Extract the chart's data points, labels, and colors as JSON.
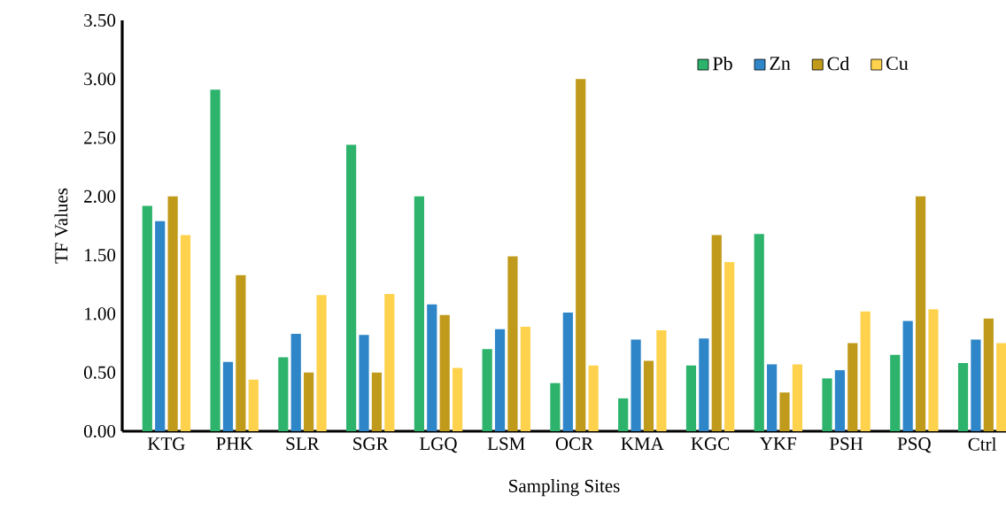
{
  "chart_data": {
    "type": "bar",
    "xlabel": "Sampling Sites",
    "ylabel": "TF Values",
    "categories": [
      "KTG",
      "PHK",
      "SLR",
      "SGR",
      "LGQ",
      "LSM",
      "OCR",
      "KMA",
      "KGC",
      "YKF",
      "PSH",
      "PSQ",
      "Ctrl"
    ],
    "series": [
      {
        "name": "Pb",
        "color": "#2db36b",
        "values": [
          1.92,
          2.91,
          0.63,
          2.44,
          2.0,
          0.7,
          0.41,
          0.28,
          0.56,
          1.68,
          0.45,
          0.65,
          0.58
        ]
      },
      {
        "name": "Zn",
        "color": "#2e86c8",
        "values": [
          1.79,
          0.59,
          0.83,
          0.82,
          1.08,
          0.87,
          1.01,
          0.78,
          0.79,
          0.57,
          0.52,
          0.94,
          0.78
        ]
      },
      {
        "name": "Cd",
        "color": "#c09a1a",
        "values": [
          2.0,
          1.33,
          0.5,
          0.5,
          0.99,
          1.49,
          3.0,
          0.6,
          1.67,
          0.33,
          0.75,
          2.0,
          0.96
        ]
      },
      {
        "name": "Cu",
        "color": "#ffd24d",
        "values": [
          1.67,
          0.44,
          1.16,
          1.17,
          0.54,
          0.89,
          0.56,
          0.86,
          1.44,
          0.57,
          1.02,
          1.04,
          0.75
        ]
      }
    ],
    "ylim": [
      0,
      3.5
    ],
    "yticks": [
      {
        "value": 0,
        "label": "0.00"
      },
      {
        "value": 0.5,
        "label": "0.50"
      },
      {
        "value": 1,
        "label": "1.00"
      },
      {
        "value": 1.5,
        "label": "1.50"
      },
      {
        "value": 2,
        "label": "2.00"
      },
      {
        "value": 2.5,
        "label": "2.50"
      },
      {
        "value": 3,
        "label": "3.00"
      },
      {
        "value": 3.5,
        "label": "3.50"
      }
    ],
    "legend": "top right",
    "grid": false
  }
}
